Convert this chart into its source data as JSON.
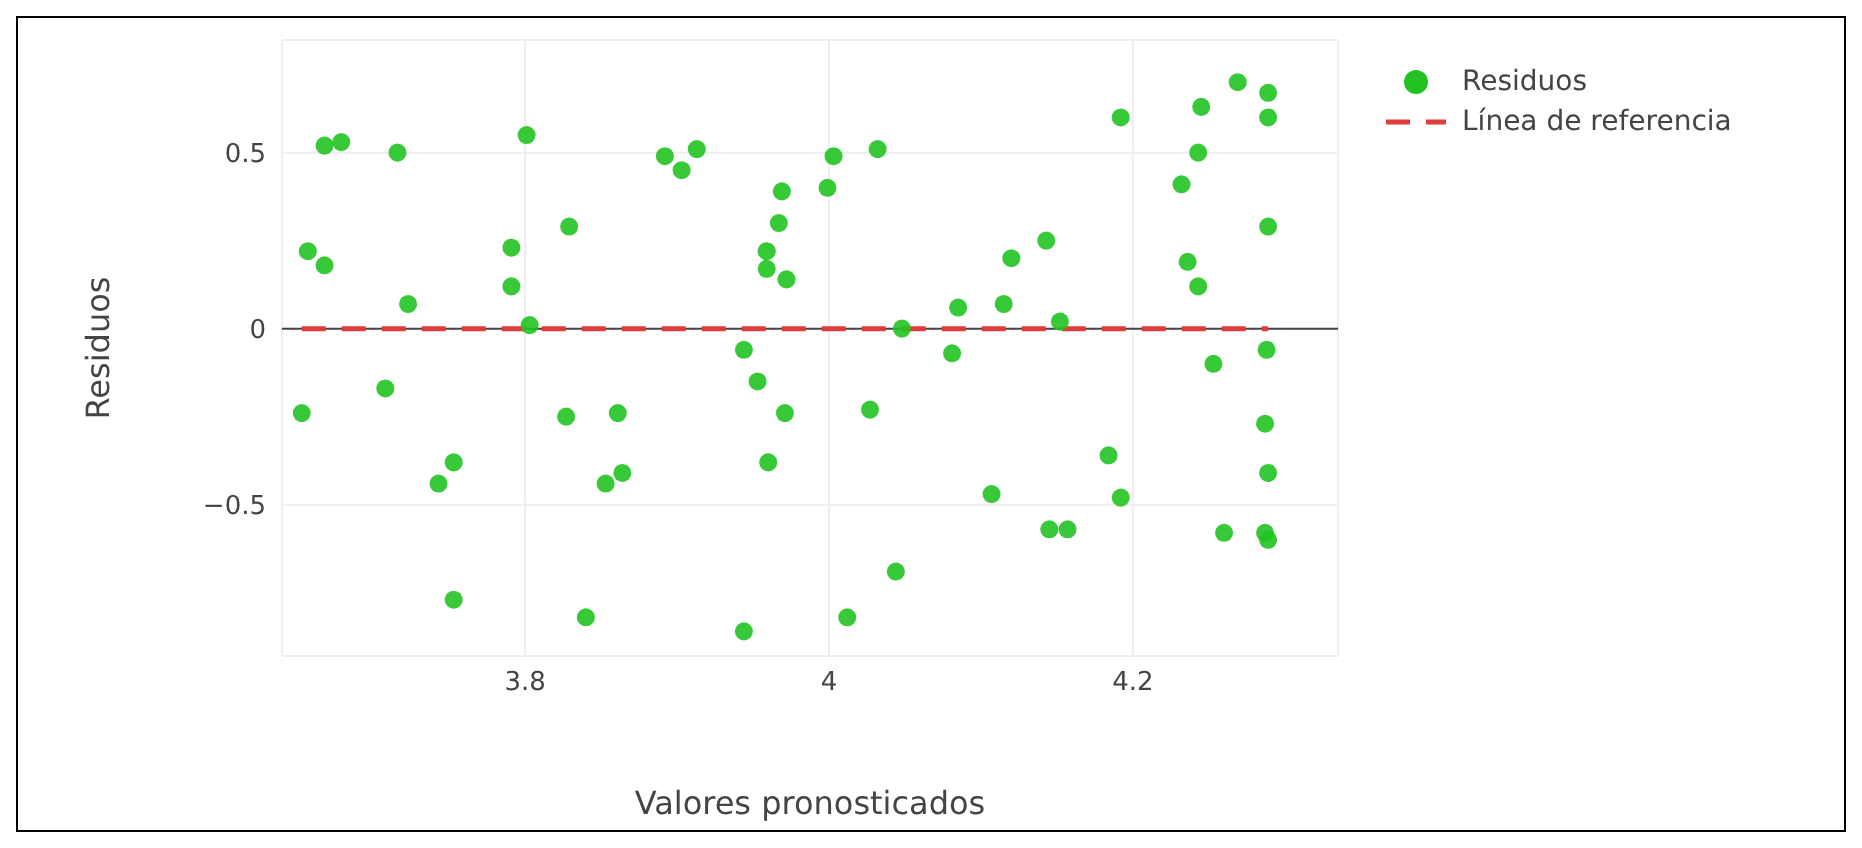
{
  "chart_data": {
    "type": "scatter",
    "xlabel": "Valores pronosticados",
    "ylabel": "Residuos",
    "xlim": [
      3.64,
      4.335
    ],
    "ylim": [
      -0.93,
      0.82
    ],
    "xticks": [
      3.8,
      4,
      4.2
    ],
    "yticks": [
      -0.5,
      0,
      0.5
    ],
    "grid": true,
    "legend": "top right",
    "marker": "circle",
    "ref_lines": [
      {
        "axis": "y",
        "value": 0,
        "color": "#444444"
      }
    ],
    "series": [
      {
        "name": "Residuos",
        "color": "#22c322",
        "x": [
          3.668,
          3.679,
          3.716,
          3.801,
          3.892,
          3.903,
          3.913,
          3.969,
          3.967,
          3.959,
          3.959,
          3.972,
          3.829,
          3.657,
          3.668,
          3.791,
          3.791,
          3.723,
          3.803,
          3.944,
          3.953,
          3.971,
          3.96,
          3.708,
          3.653,
          3.827,
          3.861,
          3.753,
          3.743,
          3.864,
          3.853,
          3.753,
          3.84,
          3.944,
          4.003,
          4.032,
          3.999,
          4.048,
          4.085,
          4.115,
          4.12,
          4.143,
          4.152,
          4.081,
          4.027,
          4.107,
          4.044,
          4.012,
          4.145,
          4.157,
          4.184,
          4.192,
          4.192,
          4.245,
          4.243,
          4.232,
          4.236,
          4.243,
          4.269,
          4.289,
          4.289,
          4.289,
          4.253,
          4.288,
          4.287,
          4.289,
          4.26,
          4.287,
          4.289
        ],
        "values": [
          0.52,
          0.53,
          0.5,
          0.55,
          0.49,
          0.45,
          0.51,
          0.39,
          0.3,
          0.22,
          0.17,
          0.14,
          0.29,
          0.22,
          0.18,
          0.23,
          0.12,
          0.07,
          0.01,
          -0.06,
          -0.15,
          -0.24,
          -0.38,
          -0.17,
          -0.24,
          -0.25,
          -0.24,
          -0.38,
          -0.44,
          -0.41,
          -0.44,
          -0.77,
          -0.82,
          -0.86,
          0.49,
          0.51,
          0.4,
          0.0,
          0.06,
          0.07,
          0.2,
          0.25,
          0.02,
          -0.07,
          -0.23,
          -0.47,
          -0.69,
          -0.82,
          -0.57,
          -0.57,
          -0.36,
          -0.48,
          0.6,
          0.63,
          0.5,
          0.41,
          0.19,
          0.12,
          0.7,
          0.67,
          0.6,
          0.29,
          -0.1,
          -0.06,
          -0.27,
          -0.41,
          -0.58,
          -0.58,
          -0.6
        ]
      },
      {
        "name": "Línea de referencia",
        "type": "line",
        "color": "#e03c3c",
        "line_style": "dashed",
        "marker": "none",
        "x": [
          3.653,
          4.289
        ],
        "values": [
          0,
          0
        ]
      }
    ]
  }
}
